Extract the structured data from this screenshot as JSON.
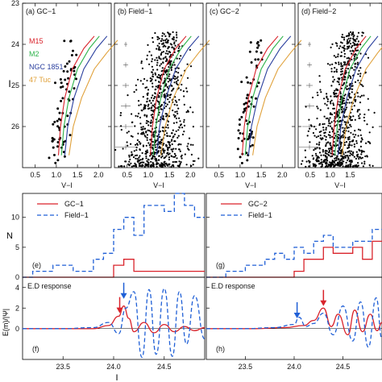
{
  "colors": {
    "m15": "#d9232b",
    "m2": "#2db34a",
    "ngc1851": "#2a3f9e",
    "tuc47": "#e0a13a",
    "gc": "#d9232b",
    "field": "#1f5fd6",
    "ed": "#d9232b",
    "ed_field": "#1f5fd6",
    "text": "#111111"
  },
  "cmd": {
    "ylabel": "I",
    "xlabel": "V−I",
    "y_ticks": [
      "23",
      "24",
      "25",
      "26"
    ],
    "x_ticks": [
      "0.5",
      "1.0",
      "1.5",
      "2.0"
    ],
    "panels": [
      {
        "label": "(a)  GC−1"
      },
      {
        "label": "(b)  Field−1"
      },
      {
        "label": "(c)  GC−2"
      },
      {
        "label": "(d)  Field−2"
      }
    ],
    "legend": [
      "M15",
      "M2",
      "NGC 1851",
      "47 Tuc"
    ]
  },
  "hist": {
    "ylabel": "N",
    "y_ticks": [
      "0",
      "5",
      "10"
    ],
    "left_legend": [
      "GC−1",
      "Field−1"
    ],
    "right_legend": [
      "GC−2",
      "Field−1"
    ],
    "left_label": "(e)",
    "right_label": "(g)"
  },
  "ed": {
    "ylabel": "E(m)/|Ψ|",
    "y_ticks": [
      "0",
      "2",
      "4"
    ],
    "title": "E.D response",
    "left_label": "(f)",
    "right_label": "(h)",
    "x_ticks_left": [
      "23.5",
      "24.0",
      "24.5"
    ],
    "x_ticks_right": [
      "23.5",
      "24.0",
      "24.5"
    ],
    "xlabel": "I"
  },
  "chart_data": [
    {
      "type": "scatter",
      "panel": "a",
      "title": "(a) GC−1",
      "xlabel": "V−I",
      "ylabel": "I",
      "xlim": [
        0.2,
        2.3
      ],
      "ylim": [
        27,
        23
      ],
      "isochrones": [
        {
          "name": "M15",
          "x": [
            1.05,
            1.1,
            1.2,
            1.38,
            1.65,
            1.9
          ],
          "y": [
            26.7,
            26.0,
            25.3,
            24.6,
            24.1,
            23.8
          ]
        },
        {
          "name": "M2",
          "x": [
            1.12,
            1.18,
            1.3,
            1.5,
            1.78,
            2.02
          ],
          "y": [
            26.7,
            26.0,
            25.3,
            24.6,
            24.1,
            23.8
          ]
        },
        {
          "name": "NGC 1851",
          "x": [
            1.2,
            1.27,
            1.42,
            1.65,
            1.95,
            2.2
          ],
          "y": [
            26.7,
            26.0,
            25.3,
            24.6,
            24.1,
            23.8
          ]
        },
        {
          "name": "47 Tuc",
          "x": [
            1.3,
            1.4,
            1.6,
            1.9,
            2.2,
            2.45
          ],
          "y": [
            26.7,
            26.0,
            25.3,
            24.6,
            24.2,
            23.9
          ]
        }
      ]
    },
    {
      "type": "scatter",
      "panel": "b",
      "title": "(b) Field−1",
      "xlabel": "V−I",
      "ylim": [
        27,
        23
      ],
      "xlim": [
        0.2,
        2.3
      ]
    },
    {
      "type": "scatter",
      "panel": "c",
      "title": "(c) GC−2",
      "xlabel": "V−I",
      "ylim": [
        27,
        23
      ],
      "xlim": [
        0.2,
        2.3
      ]
    },
    {
      "type": "scatter",
      "panel": "d",
      "title": "(d) Field−2",
      "xlabel": "V−I",
      "ylim": [
        27,
        23
      ],
      "xlim": [
        0.2,
        2.3
      ]
    },
    {
      "type": "line",
      "panel": "e",
      "ylabel": "N",
      "xlim": [
        23.1,
        24.9
      ],
      "ylim": [
        0,
        14
      ],
      "bin_edges": [
        23.1,
        23.2,
        23.3,
        23.4,
        23.5,
        23.6,
        23.7,
        23.8,
        23.9,
        24.0,
        24.1,
        24.2,
        24.3,
        24.4,
        24.5,
        24.6,
        24.7,
        24.8,
        24.9
      ],
      "series": [
        {
          "name": "GC−1",
          "values": [
            0,
            0,
            0,
            0,
            0,
            0,
            0,
            0,
            0,
            2,
            3,
            1,
            1,
            1,
            1,
            1,
            1,
            1
          ]
        },
        {
          "name": "Field−1",
          "values": [
            0,
            1,
            1,
            2,
            2,
            1,
            1,
            3,
            4,
            8,
            10,
            7,
            12,
            12,
            11,
            14,
            12,
            10
          ]
        }
      ]
    },
    {
      "type": "line",
      "panel": "g",
      "xlim": [
        23.1,
        24.9
      ],
      "ylim": [
        0,
        14
      ],
      "bin_edges": [
        23.1,
        23.2,
        23.3,
        23.4,
        23.5,
        23.6,
        23.7,
        23.8,
        23.9,
        24.0,
        24.1,
        24.2,
        24.3,
        24.4,
        24.5,
        24.6,
        24.7,
        24.8,
        24.9
      ],
      "series": [
        {
          "name": "GC−2",
          "values": [
            0,
            0,
            0,
            0,
            0,
            0,
            0,
            0,
            0,
            1,
            3,
            3,
            5,
            4,
            4,
            5,
            3,
            6
          ]
        },
        {
          "name": "Field−1",
          "values": [
            0,
            0,
            1,
            1,
            2,
            2,
            3,
            4,
            3,
            5,
            4,
            6,
            7,
            5,
            5,
            6,
            6,
            8
          ]
        }
      ]
    },
    {
      "type": "line",
      "panel": "f",
      "title": "E.D response",
      "xlabel": "I",
      "ylabel": "E(m)/|Ψ|",
      "xlim": [
        23.1,
        24.9
      ],
      "ylim": [
        -3,
        5
      ],
      "series": [
        {
          "name": "GC−1",
          "x": [
            23.1,
            23.5,
            23.8,
            23.95,
            24.05,
            24.1,
            24.15,
            24.2,
            24.3,
            24.4,
            24.5,
            24.6,
            24.7,
            24.8,
            24.9
          ],
          "y": [
            0,
            0,
            0,
            0.3,
            1.2,
            2.2,
            1.0,
            -0.3,
            0.6,
            -0.4,
            0.4,
            -0.3,
            0.2,
            -0.2,
            0.1
          ]
        },
        {
          "name": "Field−1",
          "x": [
            23.1,
            23.5,
            23.8,
            23.95,
            24.05,
            24.12,
            24.2,
            24.28,
            24.35,
            24.42,
            24.5,
            24.58,
            24.65,
            24.72,
            24.8,
            24.9
          ],
          "y": [
            0,
            0,
            0.1,
            0.6,
            -0.5,
            2.0,
            3.6,
            -2.8,
            3.8,
            -2.5,
            3.9,
            -2.7,
            3.6,
            -1.5,
            3.2,
            -1.0
          ]
        }
      ],
      "arrows": [
        {
          "color": "field",
          "x": 24.1,
          "y": 2.9
        },
        {
          "color": "gc",
          "x": 24.06,
          "y": 1.5
        }
      ]
    },
    {
      "type": "line",
      "panel": "h",
      "title": "E.D response",
      "xlabel": "I",
      "xlim": [
        23.1,
        24.9
      ],
      "ylim": [
        -3,
        5
      ],
      "series": [
        {
          "name": "GC−2",
          "x": [
            23.1,
            23.6,
            23.9,
            24.1,
            24.2,
            24.3,
            24.38,
            24.45,
            24.55,
            24.62,
            24.7,
            24.78,
            24.85,
            24.9
          ],
          "y": [
            0,
            0,
            0.1,
            0.3,
            0.8,
            2.0,
            0.2,
            1.4,
            -0.6,
            1.8,
            -0.3,
            1.4,
            -0.2,
            0.6
          ]
        },
        {
          "name": "Field−1",
          "x": [
            23.1,
            23.5,
            23.8,
            24.0,
            24.05,
            24.12,
            24.2,
            24.3,
            24.4,
            24.5,
            24.6,
            24.68,
            24.76,
            24.84,
            24.9
          ],
          "y": [
            0,
            0,
            0.1,
            0.4,
            1.1,
            0.2,
            0.5,
            1.5,
            -0.6,
            2.2,
            -1.2,
            2.6,
            -1.8,
            3.0,
            -1.0
          ]
        }
      ],
      "arrows": [
        {
          "color": "field",
          "x": 24.03,
          "y": 1.0
        },
        {
          "color": "gc",
          "x": 24.3,
          "y": 2.2
        }
      ]
    }
  ]
}
